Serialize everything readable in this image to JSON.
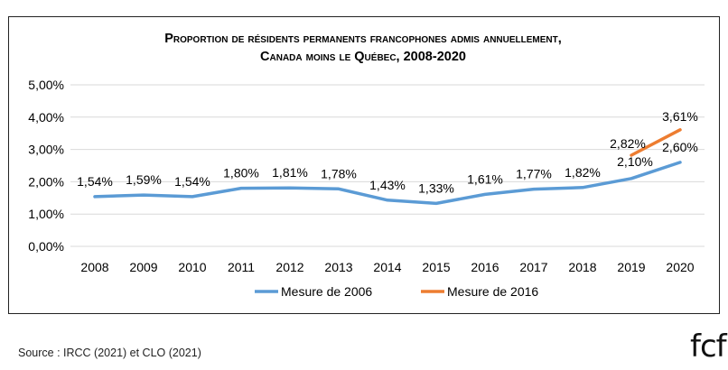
{
  "chart_data": {
    "type": "line",
    "title_lines": [
      "Proportion de résidents permanents francophones admis annuellement,",
      "Canada moins le Québec, 2008-2020"
    ],
    "categories": [
      "2008",
      "2009",
      "2010",
      "2011",
      "2012",
      "2013",
      "2014",
      "2015",
      "2016",
      "2017",
      "2018",
      "2019",
      "2020"
    ],
    "y_tick_labels": [
      "0,00%",
      "1,00%",
      "2,00%",
      "3,00%",
      "4,00%",
      "5,00%"
    ],
    "ylim": [
      0,
      5
    ],
    "grid": true,
    "legend_position": "bottom",
    "series": [
      {
        "name": "Mesure de 2006",
        "color": "#5B9BD5",
        "values": [
          1.54,
          1.59,
          1.54,
          1.8,
          1.81,
          1.78,
          1.43,
          1.33,
          1.61,
          1.77,
          1.82,
          2.1,
          2.6
        ],
        "labels": [
          "1,54%",
          "1,59%",
          "1,54%",
          "1,80%",
          "1,81%",
          "1,78%",
          "1,43%",
          "1,33%",
          "1,61%",
          "1,77%",
          "1,82%",
          "2,10%",
          "2,60%"
        ]
      },
      {
        "name": "Mesure de 2016",
        "color": "#ED7D31",
        "values": [
          null,
          null,
          null,
          null,
          null,
          null,
          null,
          null,
          null,
          null,
          null,
          2.82,
          3.61
        ],
        "labels": [
          null,
          null,
          null,
          null,
          null,
          null,
          null,
          null,
          null,
          null,
          null,
          "2,82%",
          "3,61%"
        ]
      }
    ]
  },
  "footer": {
    "source": "Source : IRCC (2021) et CLO (2021)",
    "logo": "fcf"
  }
}
